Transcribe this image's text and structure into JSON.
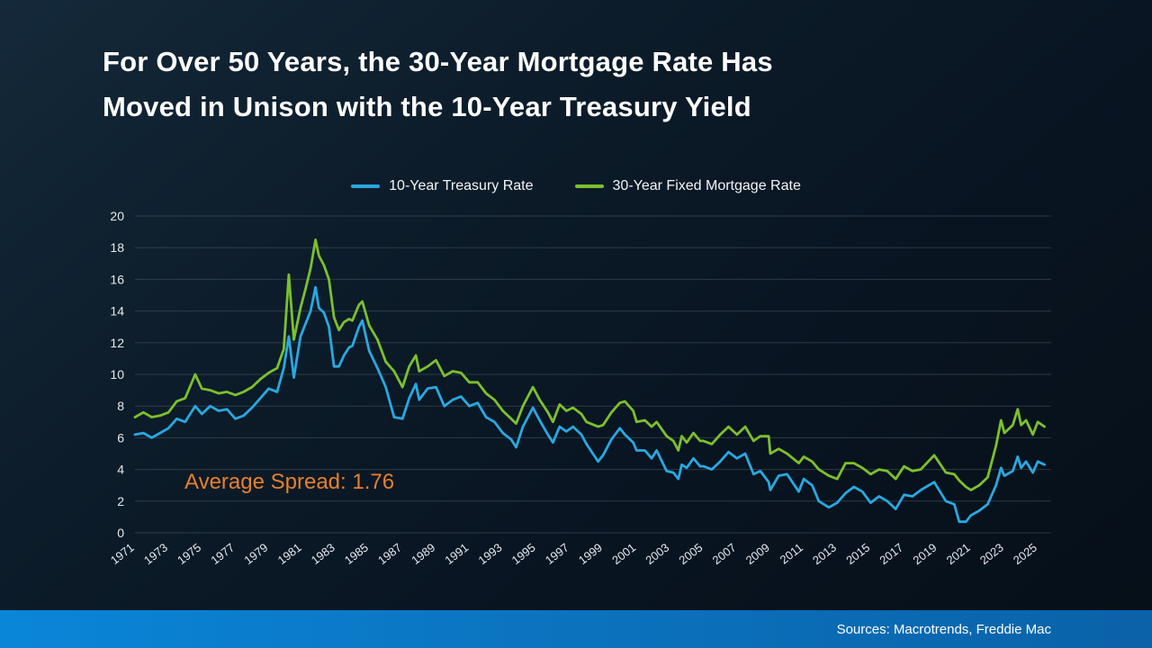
{
  "title": {
    "line1": "For Over 50 Years, the 30-Year Mortgage Rate Has",
    "line2": "Moved in Unison with the 10-Year Treasury Yield"
  },
  "annotation": {
    "text": "Average Spread: 1.76",
    "color": "#e5802d"
  },
  "footer": {
    "source_text": "Sources: Macrotrends, Freddie Mac"
  },
  "chart_data": {
    "type": "line",
    "title": "",
    "xlabel": "",
    "ylabel": "",
    "grid": true,
    "legend_position": "top",
    "ylim": [
      0,
      20
    ],
    "ytick_step": 2,
    "xlim": [
      1971,
      2025.8
    ],
    "xticks": [
      1971,
      1973,
      1975,
      1977,
      1979,
      1981,
      1983,
      1985,
      1987,
      1989,
      1991,
      1993,
      1995,
      1997,
      1999,
      2001,
      2003,
      2005,
      2007,
      2009,
      2011,
      2013,
      2015,
      2017,
      2019,
      2021,
      2023,
      2025
    ],
    "x": [
      1971.0,
      1971.5,
      1972.0,
      1972.5,
      1973.0,
      1973.5,
      1974.0,
      1974.6,
      1975.0,
      1975.5,
      1976.0,
      1976.5,
      1977.0,
      1977.5,
      1978.0,
      1978.5,
      1979.0,
      1979.5,
      1979.9,
      1980.2,
      1980.5,
      1980.9,
      1981.2,
      1981.5,
      1981.8,
      1982.0,
      1982.3,
      1982.6,
      1982.9,
      1983.2,
      1983.5,
      1983.8,
      1984.0,
      1984.4,
      1984.6,
      1985.0,
      1985.5,
      1986.0,
      1986.5,
      1987.0,
      1987.4,
      1987.8,
      1988.0,
      1988.5,
      1989.0,
      1989.5,
      1990.0,
      1990.5,
      1991.0,
      1991.5,
      1992.0,
      1992.5,
      1993.0,
      1993.5,
      1993.8,
      1994.2,
      1994.8,
      1995.2,
      1995.7,
      1996.0,
      1996.4,
      1996.8,
      1997.2,
      1997.7,
      1998.0,
      1998.7,
      1999.0,
      1999.5,
      2000.0,
      2000.3,
      2000.8,
      2001.0,
      2001.5,
      2001.9,
      2002.2,
      2002.8,
      2003.2,
      2003.5,
      2003.7,
      2004.0,
      2004.4,
      2004.8,
      2005.0,
      2005.5,
      2006.0,
      2006.5,
      2007.0,
      2007.5,
      2008.0,
      2008.4,
      2008.9,
      2009.0,
      2009.5,
      2010.0,
      2010.7,
      2011.0,
      2011.5,
      2011.9,
      2012.5,
      2013.0,
      2013.5,
      2014.0,
      2014.5,
      2015.0,
      2015.5,
      2016.0,
      2016.5,
      2017.0,
      2017.5,
      2018.0,
      2018.8,
      2019.5,
      2020.0,
      2020.3,
      2020.7,
      2021.0,
      2021.5,
      2022.0,
      2022.5,
      2022.8,
      2023.0,
      2023.5,
      2023.8,
      2024.0,
      2024.3,
      2024.7,
      2025.0,
      2025.4
    ],
    "series": [
      {
        "name": "10-Year Treasury Rate",
        "color": "#29a8e0",
        "values": [
          6.2,
          6.3,
          6.0,
          6.3,
          6.6,
          7.2,
          7.0,
          8.0,
          7.5,
          8.0,
          7.7,
          7.8,
          7.2,
          7.4,
          7.9,
          8.5,
          9.1,
          8.9,
          10.4,
          12.4,
          9.8,
          12.4,
          13.2,
          14.0,
          15.5,
          14.2,
          13.9,
          13.0,
          10.5,
          10.5,
          11.2,
          11.7,
          11.8,
          13.0,
          13.4,
          11.5,
          10.4,
          9.2,
          7.3,
          7.2,
          8.5,
          9.4,
          8.4,
          9.1,
          9.2,
          8.0,
          8.4,
          8.6,
          8.0,
          8.2,
          7.3,
          7.0,
          6.3,
          5.9,
          5.4,
          6.7,
          7.9,
          7.1,
          6.2,
          5.7,
          6.7,
          6.4,
          6.7,
          6.2,
          5.6,
          4.5,
          4.9,
          5.9,
          6.6,
          6.2,
          5.7,
          5.2,
          5.2,
          4.7,
          5.2,
          3.9,
          3.8,
          3.4,
          4.3,
          4.1,
          4.7,
          4.2,
          4.2,
          4.0,
          4.5,
          5.1,
          4.7,
          5.0,
          3.7,
          3.9,
          3.2,
          2.7,
          3.6,
          3.7,
          2.6,
          3.4,
          3.0,
          2.0,
          1.6,
          1.9,
          2.5,
          2.9,
          2.6,
          1.9,
          2.3,
          2.0,
          1.5,
          2.4,
          2.3,
          2.7,
          3.2,
          2.0,
          1.8,
          0.7,
          0.7,
          1.1,
          1.4,
          1.8,
          3.0,
          4.1,
          3.6,
          3.9,
          4.8,
          4.1,
          4.5,
          3.8,
          4.5,
          4.3
        ]
      },
      {
        "name": "30-Year Fixed Mortgage Rate",
        "color": "#7cc02c",
        "values": [
          7.3,
          7.6,
          7.3,
          7.4,
          7.6,
          8.3,
          8.5,
          10.0,
          9.1,
          9.0,
          8.8,
          8.9,
          8.7,
          8.9,
          9.2,
          9.7,
          10.1,
          10.4,
          11.6,
          16.3,
          12.2,
          14.2,
          15.4,
          16.7,
          18.5,
          17.5,
          16.9,
          16.0,
          13.6,
          12.8,
          13.3,
          13.5,
          13.4,
          14.4,
          14.6,
          13.1,
          12.2,
          10.8,
          10.2,
          9.2,
          10.5,
          11.2,
          10.2,
          10.5,
          10.9,
          9.9,
          10.2,
          10.1,
          9.5,
          9.5,
          8.8,
          8.4,
          7.7,
          7.2,
          6.9,
          8.0,
          9.2,
          8.4,
          7.6,
          7.0,
          8.1,
          7.7,
          7.9,
          7.5,
          7.0,
          6.7,
          6.8,
          7.6,
          8.2,
          8.3,
          7.7,
          7.0,
          7.1,
          6.7,
          7.0,
          6.1,
          5.8,
          5.2,
          6.1,
          5.7,
          6.3,
          5.8,
          5.8,
          5.6,
          6.2,
          6.7,
          6.2,
          6.7,
          5.8,
          6.1,
          6.1,
          5.0,
          5.3,
          5.0,
          4.4,
          4.8,
          4.5,
          4.0,
          3.6,
          3.4,
          4.4,
          4.4,
          4.1,
          3.7,
          4.0,
          3.9,
          3.4,
          4.2,
          3.9,
          4.0,
          4.9,
          3.8,
          3.7,
          3.3,
          2.9,
          2.7,
          3.0,
          3.5,
          5.5,
          7.1,
          6.3,
          6.8,
          7.8,
          6.8,
          7.1,
          6.2,
          7.0,
          6.7
        ]
      }
    ]
  }
}
